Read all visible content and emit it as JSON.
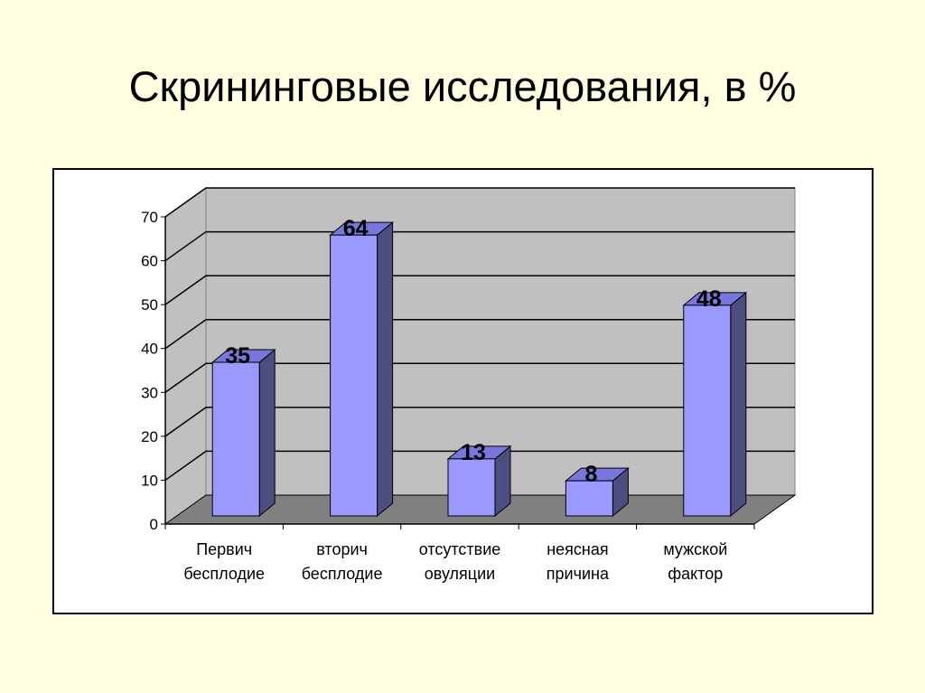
{
  "title": "Скрининговые исследования, в %",
  "chart_data": {
    "type": "bar",
    "style": "3d-column",
    "categories": [
      [
        "Первич",
        "бесплодие"
      ],
      [
        "вторич",
        "бесплодие"
      ],
      [
        "отсутствие",
        "овуляции"
      ],
      [
        "неясная",
        "причина"
      ],
      [
        "мужской",
        "фактор"
      ]
    ],
    "values": [
      35,
      64,
      13,
      8,
      48
    ],
    "data_labels": [
      "35",
      "64",
      "13",
      "8",
      "48"
    ],
    "ylim": [
      0,
      70
    ],
    "yticks": [
      "0",
      "10",
      "20",
      "30",
      "40",
      "50",
      "60",
      "70"
    ],
    "grid": true,
    "legend": "none",
    "colors": {
      "bar_front": "#9999ff",
      "bar_side": "#4d4d80",
      "bar_top": "#7777dd",
      "wall": "#c0c0c0",
      "floor": "#808080",
      "background": "#fefee0"
    }
  }
}
